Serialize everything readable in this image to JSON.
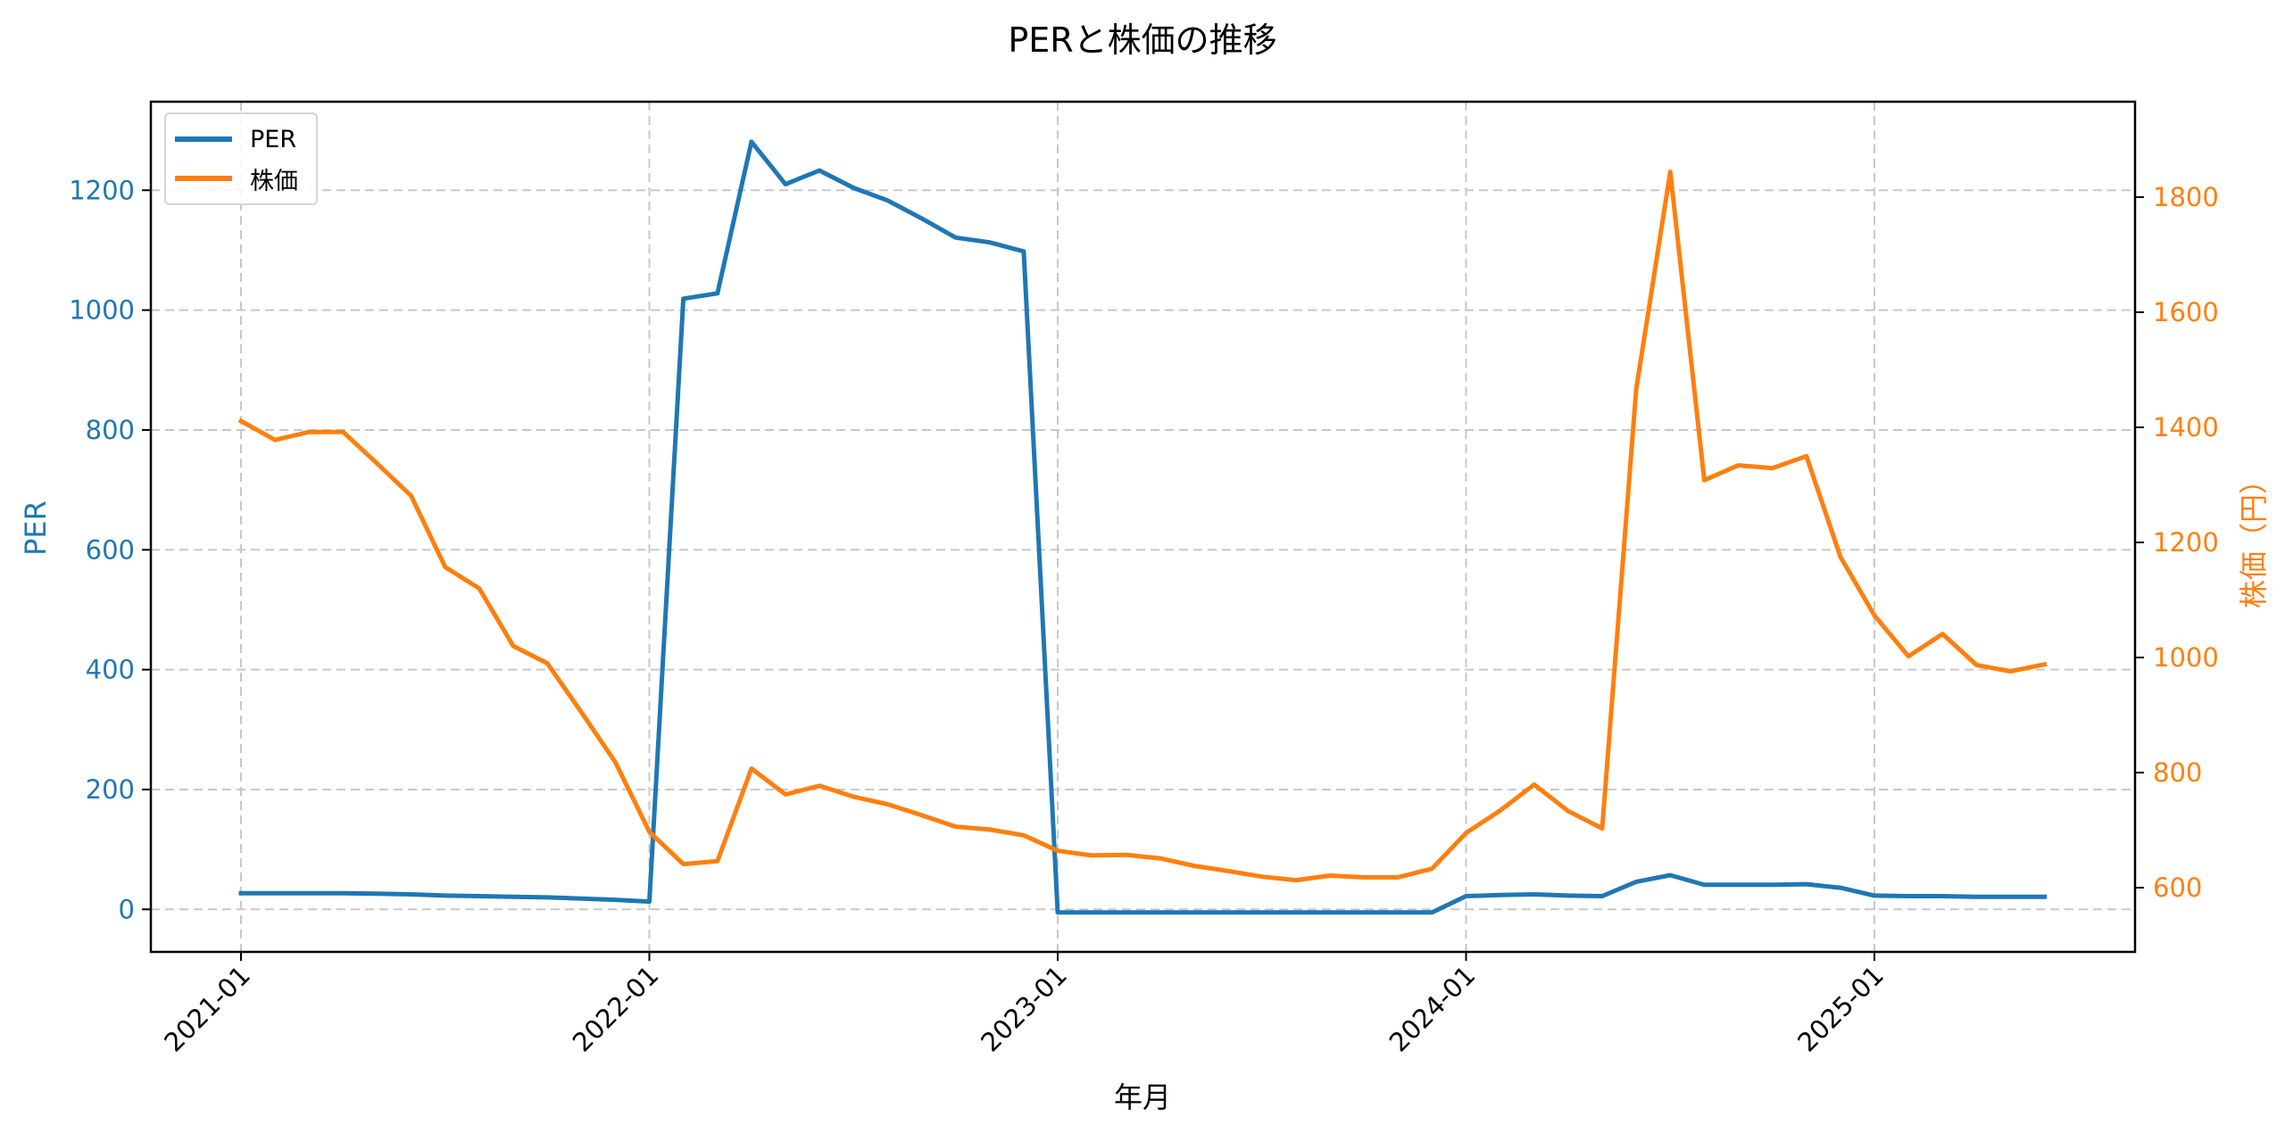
{
  "title": "PERと株価の推移",
  "xlabel": "年月",
  "ylabel_left": "PER",
  "ylabel_right": "株価（円）",
  "colors": {
    "per": "#1f77b4",
    "price": "#ff7f0e",
    "grid": "#c8c8c8",
    "axis": "#000000"
  },
  "legend": [
    {
      "label": "PER",
      "color": "#1f77b4"
    },
    {
      "label": "株価",
      "color": "#ff7f0e"
    }
  ],
  "chart_data": {
    "type": "line",
    "title": "PERと株価の推移",
    "xlabel": "年月",
    "ylabel": "PER",
    "ylabel_secondary": "株価（円）",
    "x_ticks": [
      "2021-01",
      "2022-01",
      "2023-01",
      "2024-01",
      "2025-01"
    ],
    "y_ticks_left": [
      0,
      200,
      400,
      600,
      800,
      1000,
      1200
    ],
    "y_ticks_right": [
      600,
      800,
      1000,
      1200,
      1400,
      1600,
      1800
    ],
    "ylim_left": [
      -71,
      1348
    ],
    "ylim_right": [
      488,
      1963
    ],
    "grid": true,
    "legend_position": "upper left",
    "x": [
      "2021-01",
      "2021-02",
      "2021-03",
      "2021-04",
      "2021-05",
      "2021-06",
      "2021-07",
      "2021-08",
      "2021-09",
      "2021-10",
      "2021-11",
      "2021-12",
      "2022-01",
      "2022-02",
      "2022-03",
      "2022-04",
      "2022-05",
      "2022-06",
      "2022-07",
      "2022-08",
      "2022-09",
      "2022-10",
      "2022-11",
      "2022-12",
      "2023-01",
      "2023-02",
      "2023-03",
      "2023-04",
      "2023-05",
      "2023-06",
      "2023-07",
      "2023-08",
      "2023-09",
      "2023-10",
      "2023-11",
      "2023-12",
      "2024-01",
      "2024-02",
      "2024-03",
      "2024-04",
      "2024-05",
      "2024-06",
      "2024-07",
      "2024-08",
      "2024-09",
      "2024-10",
      "2024-11",
      "2024-12",
      "2025-01",
      "2025-02",
      "2025-03",
      "2025-04",
      "2025-05",
      "2025-06"
    ],
    "series": [
      {
        "name": "PER",
        "axis": "left",
        "color": "#1f77b4",
        "values": [
          27,
          27,
          27,
          27,
          26,
          25,
          23,
          22,
          21,
          20,
          18,
          16,
          13,
          1019,
          1028,
          1281,
          1210,
          1233,
          1204,
          1183,
          1153,
          1121,
          1113,
          1098,
          -5,
          -5,
          -5,
          -5,
          -5,
          -5,
          -5,
          -5,
          -5,
          -5,
          -5,
          -5,
          22,
          24,
          25,
          23,
          22,
          46,
          57,
          41,
          41,
          41,
          42,
          36,
          23,
          22,
          22,
          21,
          21,
          21
        ]
      },
      {
        "name": "株価",
        "axis": "right",
        "color": "#ff7f0e",
        "values": [
          1411,
          1378,
          1392,
          1392,
          1337,
          1281,
          1157,
          1120,
          1020,
          990,
          905,
          818,
          697,
          641,
          646,
          807,
          762,
          777,
          758,
          745,
          726,
          706,
          701,
          691,
          664,
          656,
          657,
          651,
          638,
          629,
          619,
          613,
          621,
          618,
          618,
          633,
          695,
          734,
          779,
          733,
          703,
          1466,
          1844,
          1308,
          1334,
          1329,
          1350,
          1175,
          1073,
          1002,
          1041,
          987,
          976,
          988
        ]
      }
    ]
  }
}
